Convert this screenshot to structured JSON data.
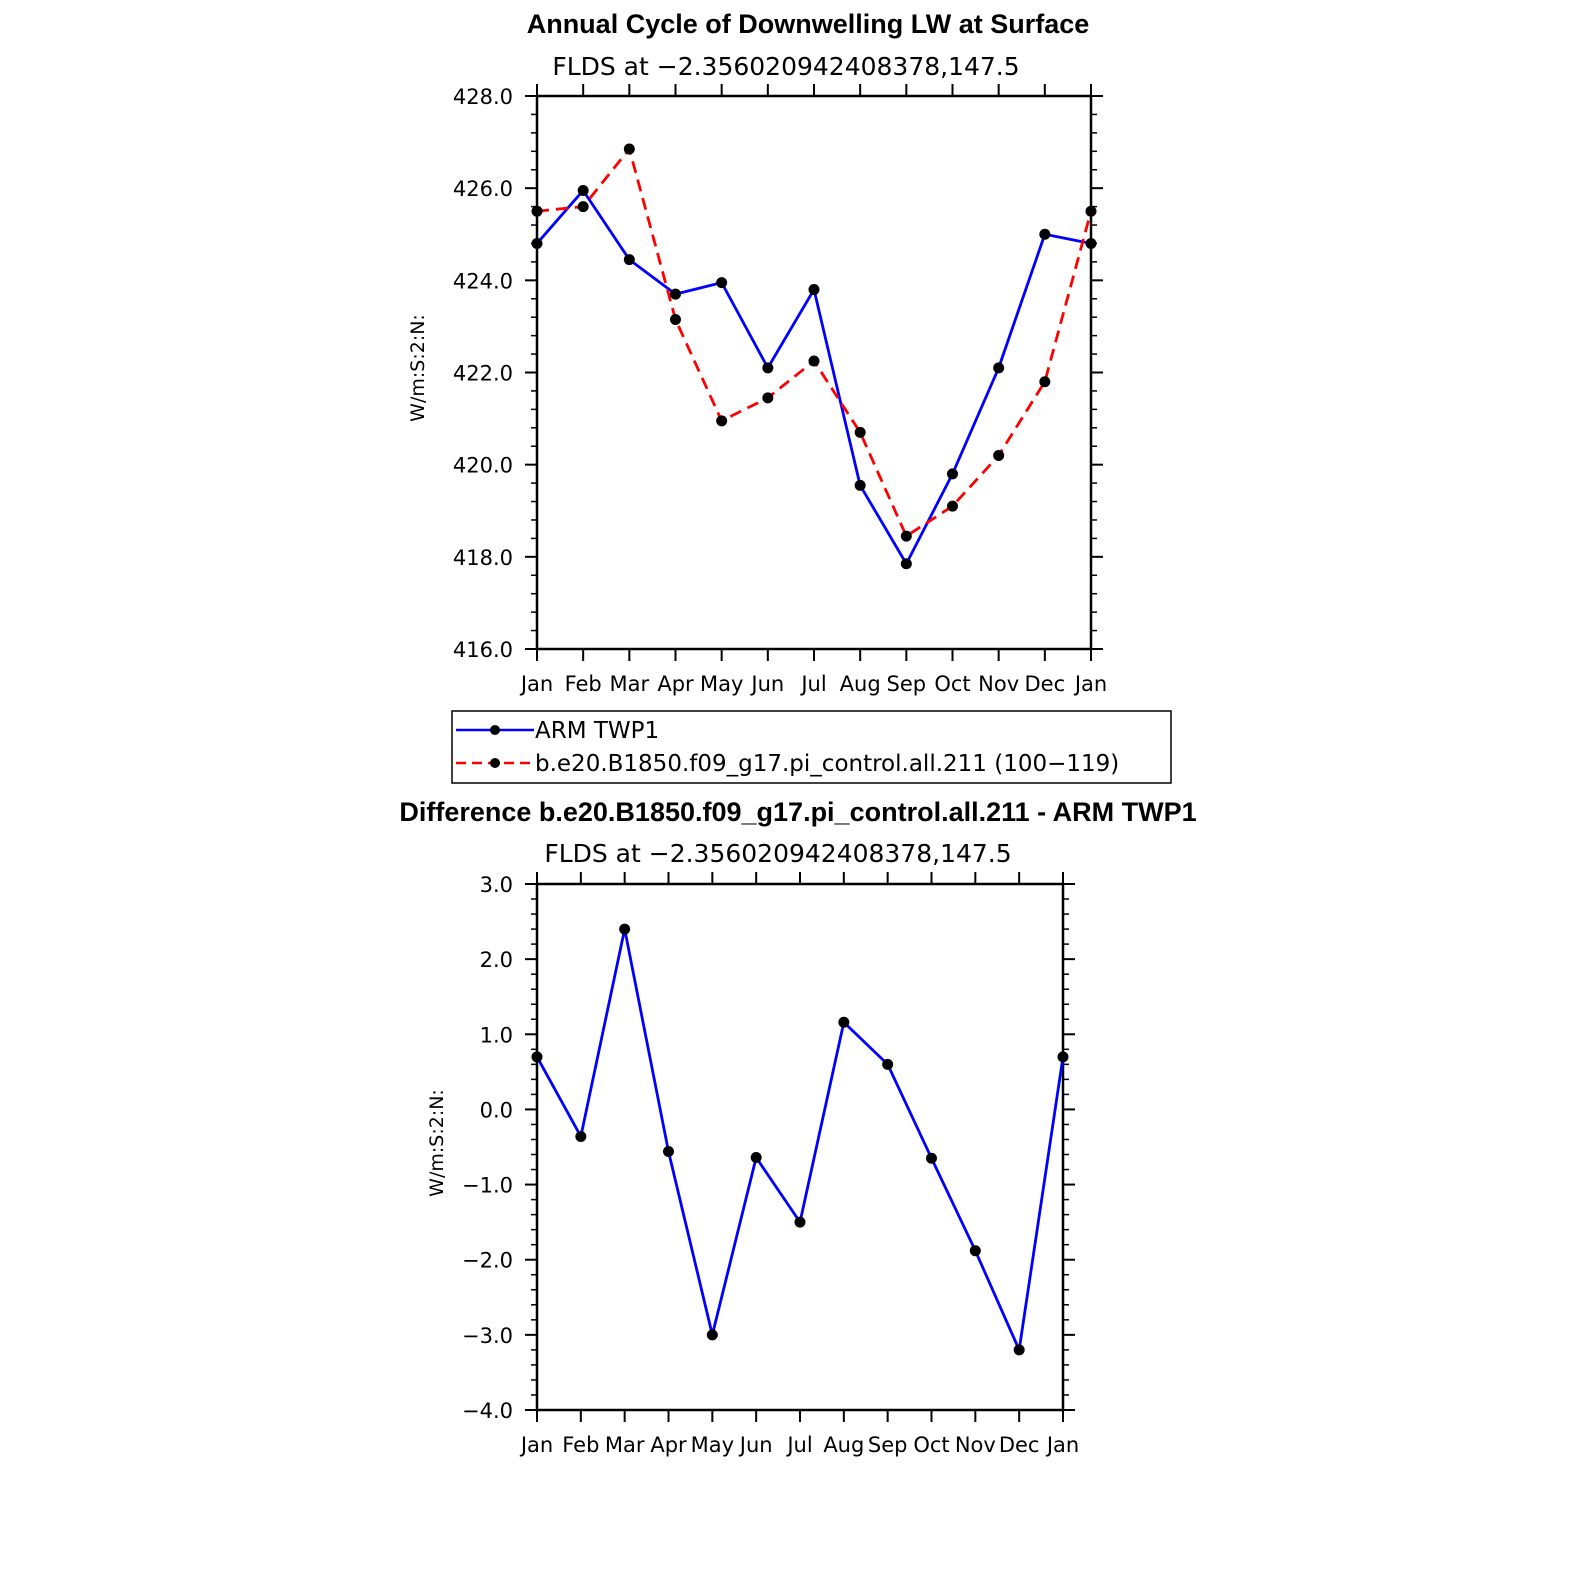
{
  "chart_data": [
    {
      "type": "line",
      "title": "Annual Cycle of Downwelling LW at Surface",
      "subtitle": "FLDS at −2.356020942408378,147.5",
      "xlabel": "",
      "ylabel": "W/m:S:2:N:",
      "categories": [
        "Jan",
        "Feb",
        "Mar",
        "Apr",
        "May",
        "Jun",
        "Jul",
        "Aug",
        "Sep",
        "Oct",
        "Nov",
        "Dec",
        "Jan"
      ],
      "ylim": [
        416.0,
        428.0
      ],
      "yticks": [
        416.0,
        418.0,
        420.0,
        422.0,
        424.0,
        426.0,
        428.0
      ],
      "ytick_labels": [
        "416.0",
        "418.0",
        "420.0",
        "422.0",
        "424.0",
        "426.0",
        "428.0"
      ],
      "series": [
        {
          "name": "ARM TWP1",
          "color": "#0000ff",
          "dash": "solid",
          "values": [
            424.8,
            425.95,
            424.45,
            423.7,
            423.95,
            422.1,
            423.8,
            419.55,
            417.85,
            419.8,
            422.1,
            425.0,
            424.8
          ]
        },
        {
          "name": "b.e20.B1850.f09_g17.pi_control.all.211 (100−119)",
          "color": "#ff0000",
          "dash": "dashed",
          "values": [
            425.5,
            425.6,
            426.85,
            423.15,
            420.95,
            421.45,
            422.25,
            420.7,
            418.45,
            419.1,
            420.2,
            421.8,
            425.5
          ]
        }
      ],
      "legend_position": "below"
    },
    {
      "type": "line",
      "title": "Difference b.e20.B1850.f09_g17.pi_control.all.211 - ARM TWP1",
      "subtitle": "FLDS at −2.356020942408378,147.5",
      "xlabel": "",
      "ylabel": "W/m:S:2:N:",
      "categories": [
        "Jan",
        "Feb",
        "Mar",
        "Apr",
        "May",
        "Jun",
        "Jul",
        "Aug",
        "Sep",
        "Oct",
        "Nov",
        "Dec",
        "Jan"
      ],
      "ylim": [
        -4.0,
        3.0
      ],
      "yticks": [
        -4.0,
        -3.0,
        -2.0,
        -1.0,
        0.0,
        1.0,
        2.0,
        3.0
      ],
      "ytick_labels": [
        "−4.0",
        "−3.0",
        "−2.0",
        "−1.0",
        "0.0",
        "1.0",
        "2.0",
        "3.0"
      ],
      "series": [
        {
          "name": "Difference",
          "color": "#0000ff",
          "dash": "solid",
          "values": [
            0.7,
            -0.36,
            2.4,
            -0.56,
            -3.0,
            -0.64,
            -1.5,
            1.16,
            0.6,
            -0.65,
            -1.88,
            -3.2,
            0.7
          ]
        }
      ]
    }
  ]
}
